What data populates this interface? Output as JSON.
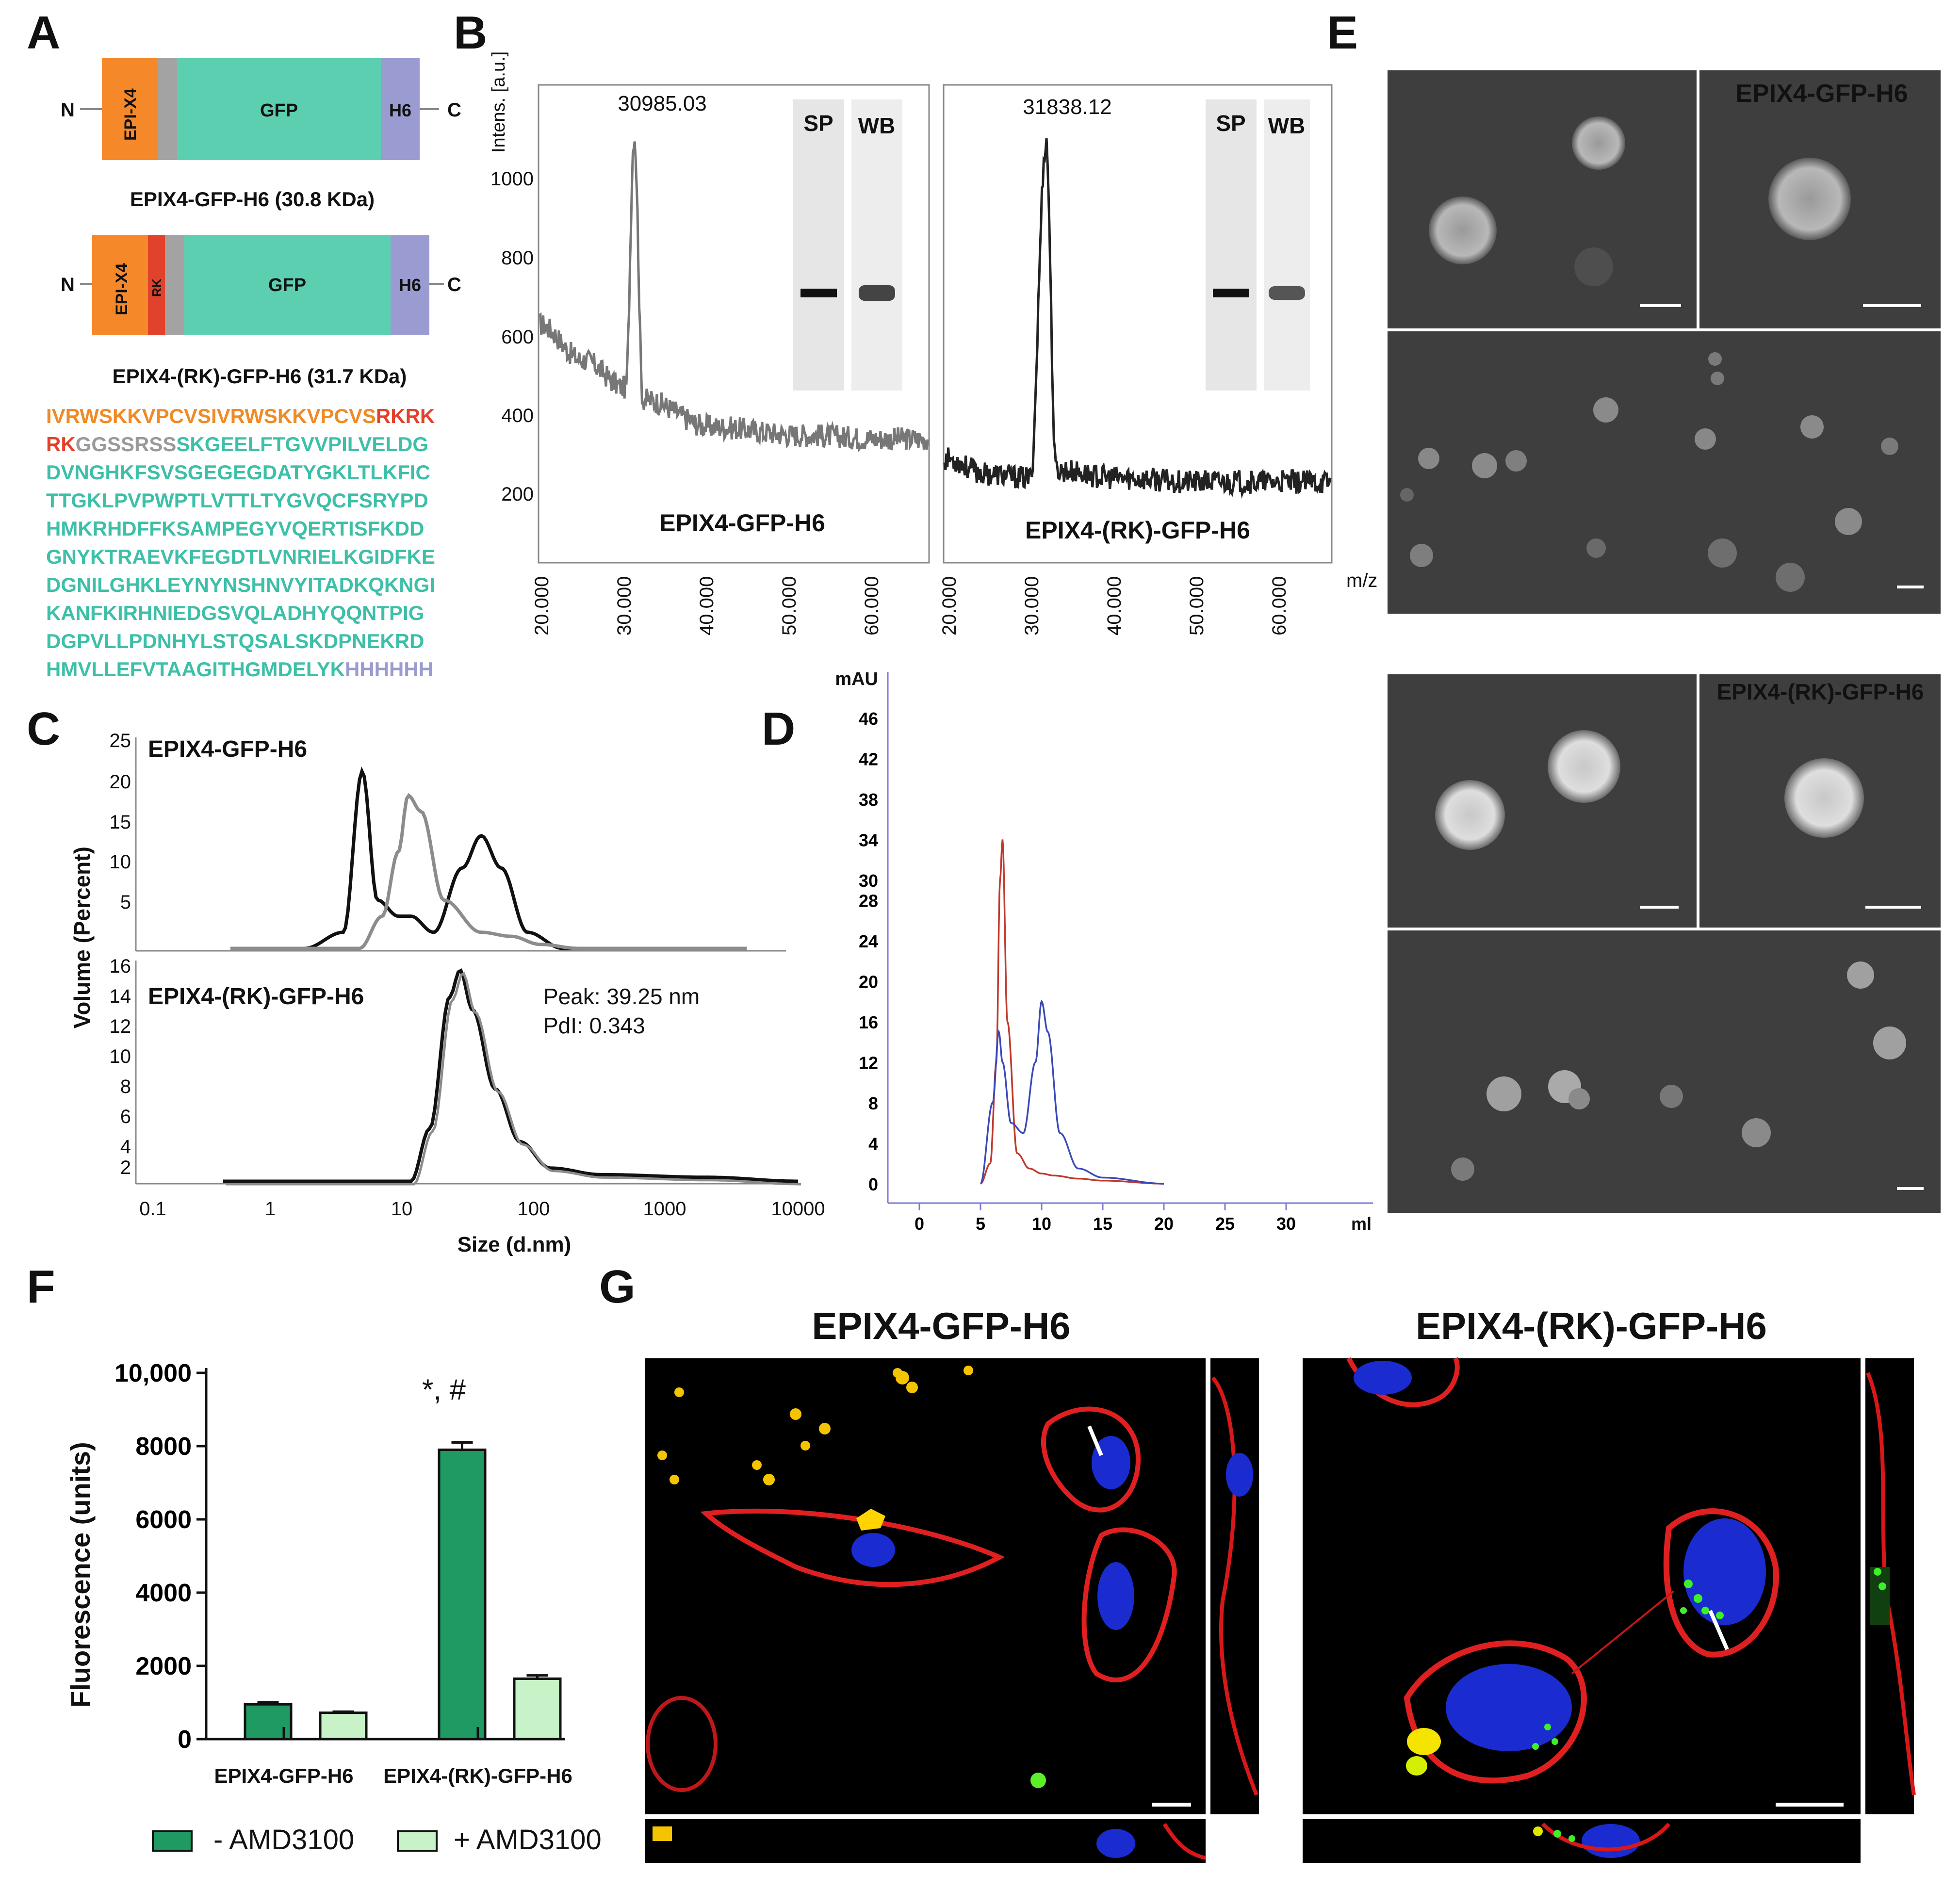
{
  "panel_letters": {
    "a": "A",
    "b": "B",
    "c": "C",
    "d": "D",
    "e": "E",
    "f": "F",
    "g": "G"
  },
  "panel_a": {
    "n": "N",
    "c": "C",
    "construct1": {
      "epi": "EPI-X4",
      "gfp": "GFP",
      "h6": "H6",
      "label": "EPIX4-GFP-H6 (30.8 KDa)"
    },
    "construct2": {
      "epi": "EPI-X4",
      "rk": "RK",
      "gfp": "GFP",
      "h6": "H6",
      "label": "EPIX4-(RK)-GFP-H6 (31.7 KDa)"
    },
    "seq": {
      "l1a": "IVRWSKKVPCVSIVRWSKKVPCVS",
      "l1b": "RKRK",
      "l2a": "RK",
      "l2b": "GGSSRSS",
      "l2c": "SKGEELFTGVVPILVELDG",
      "l3": "DVNGHKFSVSGEGEGDATYGKLTLKFIC",
      "l4": "TTGKLPVPWPTLVTTLTYGVQCFSRYPD",
      "l5": "HMKRHDFFKSAMPEGYVQERTISFKDD",
      "l6": "GNYKTRAEVKFEGDTLVNRIELKGIDFKE",
      "l7": "DGNILGHKLEYNYNSHNVYITADKQKNGI",
      "l8": "KANFKIRHNIEDGSVQLADHYQQNTPIG",
      "l9": "DGPVLLPDNHYLSTQSALSKDPNEKRD",
      "l10a": "HMVLLEFVTAAGITHGMDELYK",
      "l10b": "HHHHHH"
    },
    "colors": {
      "epi": "#f5892a",
      "rk": "#e0422c",
      "linker": "#a3a3a3",
      "gfp": "#5ccfb0",
      "h6": "#9a9bd0"
    }
  },
  "panel_b": {
    "ylabel": "Intens. [a.u.]",
    "xlabel": "m/z",
    "yticks": [
      "1000",
      "800",
      "600",
      "400",
      "200"
    ],
    "xticks": [
      "20.000",
      "30.000",
      "40.000",
      "50.000",
      "60.000"
    ],
    "left": {
      "peak_label": "30985.03",
      "name": "EPIX4-GFP-H6",
      "sp": "SP",
      "wb": "WB"
    },
    "right": {
      "peak_label": "31838.12",
      "name": "EPIX4-(RK)-GFP-H6",
      "sp": "SP",
      "wb": "WB"
    }
  },
  "panel_c": {
    "ylabel": "Volume (Percent)",
    "xlabel": "Size (d.nm)",
    "top_label": "EPIX4-GFP-H6",
    "bottom_label": "EPIX4-(RK)-GFP-H6",
    "top_yticks": [
      "25",
      "20",
      "15",
      "10",
      "5"
    ],
    "bottom_yticks": [
      "16",
      "14",
      "12",
      "10",
      "8",
      "6",
      "4",
      "2"
    ],
    "xticks": [
      "0.1",
      "1",
      "10",
      "100",
      "1000",
      "10000"
    ],
    "peak": "Peak: 39.25 nm",
    "pdi": "PdI: 0.343"
  },
  "panel_d": {
    "ylabel": "mAU",
    "xlabel": "ml",
    "yticks": [
      "46",
      "42",
      "38",
      "34",
      "30",
      "28",
      "24",
      "20",
      "16",
      "12",
      "8",
      "4",
      "0"
    ],
    "xticks": [
      "0",
      "5",
      "10",
      "15",
      "20",
      "25",
      "30"
    ]
  },
  "panel_e": {
    "label1": "EPIX4-GFP-H6",
    "label2": "EPIX4-(RK)-GFP-H6"
  },
  "panel_f": {
    "ylabel": "Fluorescence (units)",
    "yticks": [
      "10,000",
      "8000",
      "6000",
      "4000",
      "2000",
      "0"
    ],
    "sig": "*, #",
    "legend_minus": "- AMD3100",
    "legend_plus": "+ AMD3100",
    "colors": {
      "minus": "#1f9a62",
      "plus": "#c8f2c8"
    }
  },
  "panel_g": {
    "title_left": "EPIX4-GFP-H6",
    "title_right": "EPIX4-(RK)-GFP-H6"
  },
  "chart_data": [
    {
      "type": "bar",
      "categories": [
        "EPIX4-GFP-H6",
        "EPIX4-(RK)-GFP-H6"
      ],
      "series": [
        {
          "name": "- AMD3100",
          "values": [
            950,
            7900
          ],
          "errors": [
            60,
            200
          ]
        },
        {
          "name": "+ AMD3100",
          "values": [
            720,
            1650
          ],
          "errors": [
            30,
            90
          ]
        }
      ],
      "ylabel": "Fluorescence (units)",
      "ylim": [
        0,
        10000
      ],
      "legend": "bottom"
    },
    {
      "type": "line",
      "xlabel": "Size (d.nm)",
      "ylabel": "Volume (Percent)",
      "xscale": "log",
      "xlim": [
        0.1,
        10000
      ],
      "series": [
        {
          "panel": "EPIX4-GFP-H6",
          "color": "black",
          "x": [
            1.5,
            3,
            4.2,
            5.5,
            8,
            10,
            15,
            25,
            35,
            50,
            80,
            150
          ],
          "y": [
            0,
            2,
            22,
            6,
            4,
            4,
            2,
            10,
            14,
            10,
            2,
            0
          ]
        },
        {
          "panel": "EPIX4-GFP-H6",
          "color": "gray",
          "x": [
            4,
            6,
            8,
            9.5,
            12,
            18,
            35,
            60,
            100,
            200
          ],
          "y": [
            0,
            4,
            12,
            19,
            17,
            6,
            2,
            1.5,
            0.5,
            0
          ]
        },
        {
          "panel": "EPIX4-(RK)-GFP-H6",
          "x": [
            10,
            14,
            20,
            24,
            30,
            45,
            70,
            120,
            300,
            2000,
            10000
          ],
          "y": [
            0,
            4,
            14,
            16,
            13,
            7,
            3,
            1,
            0.5,
            0.3,
            0
          ]
        }
      ]
    },
    {
      "type": "line",
      "xlabel": "ml",
      "ylabel": "mAU",
      "xlim": [
        -3,
        35
      ],
      "ylim": [
        0,
        46
      ],
      "series": [
        {
          "color": "red",
          "x": [
            5,
            5.8,
            6.3,
            6.6,
            6.8,
            7.2,
            8,
            9,
            10,
            11,
            13,
            15,
            20
          ],
          "y": [
            0,
            2,
            12,
            30,
            34,
            16,
            3,
            1.5,
            1,
            0.8,
            0.5,
            0.3,
            0
          ]
        },
        {
          "color": "blue",
          "x": [
            5,
            6,
            6.5,
            6.8,
            7.5,
            8.5,
            9.5,
            10,
            10.5,
            11.5,
            13,
            15,
            20
          ],
          "y": [
            0,
            8,
            15,
            12,
            6,
            5,
            12,
            18,
            15,
            5,
            1.5,
            0.6,
            0
          ]
        }
      ]
    },
    {
      "type": "line",
      "xlabel": "m/z",
      "ylabel": "Intens. [a.u.]",
      "xlim": [
        20000,
        65000
      ],
      "series": [
        {
          "name": "EPIX4-GFP-H6",
          "x": [
            20000,
            25000,
            30000,
            30985,
            32000,
            40000,
            50000,
            60000
          ],
          "y": [
            620,
            530,
            460,
            1100,
            430,
            360,
            340,
            330
          ]
        },
        {
          "name": "EPIX4-(RK)-GFP-H6",
          "x": [
            20000,
            25000,
            30000,
            31838,
            33000,
            40000,
            50000,
            60000
          ],
          "y": [
            280,
            240,
            230,
            1080,
            250,
            230,
            220,
            220
          ]
        }
      ]
    }
  ]
}
